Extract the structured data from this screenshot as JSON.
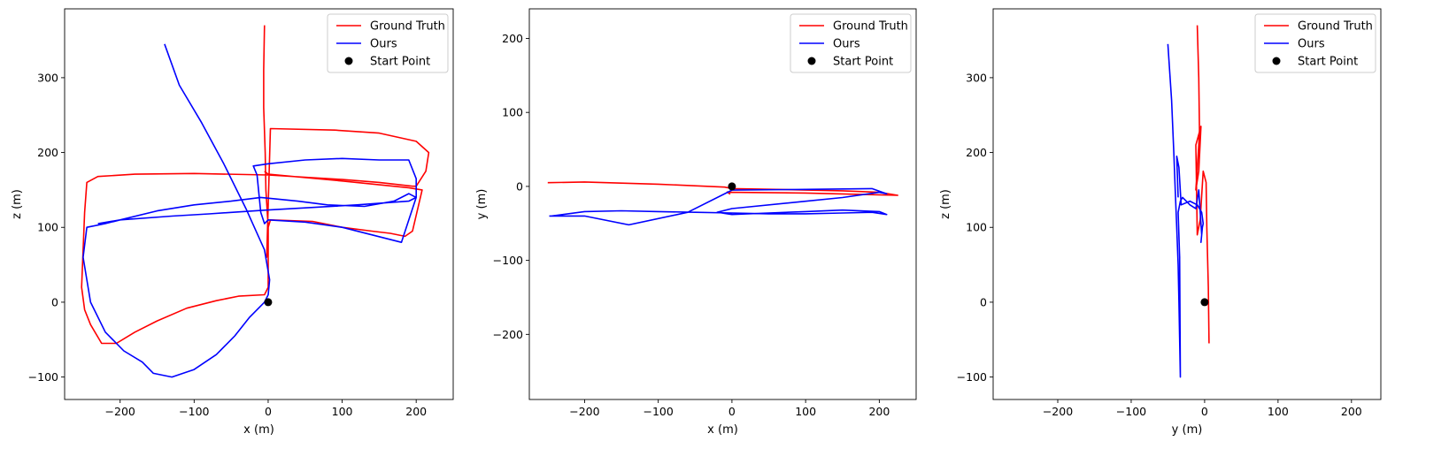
{
  "chart_data": [
    {
      "type": "line",
      "xlabel": "x (m)",
      "ylabel": "z (m)",
      "xlim": [
        -275,
        250
      ],
      "ylim": [
        -130,
        392
      ],
      "xticks": [
        -200,
        -100,
        0,
        100,
        200
      ],
      "yticks": [
        -100,
        0,
        100,
        200,
        300
      ],
      "grid": false,
      "legend_position": "top-right",
      "series": [
        {
          "name": "Ground Truth",
          "color": "#ff0000",
          "x": [
            -5,
            -6,
            -6,
            -4,
            -3,
            0,
            -2,
            3,
            90,
            150,
            200,
            217,
            213,
            200,
            195,
            150,
            100,
            0,
            -100,
            -180,
            -230,
            -245,
            -248,
            -252,
            -248,
            -240,
            -225,
            -205,
            -180,
            -150,
            -110,
            -70,
            -40,
            -5,
            0,
            0,
            0,
            3,
            60,
            100,
            140,
            165,
            185,
            195,
            208,
            190,
            100,
            0,
            -5
          ],
          "y": [
            370,
            310,
            260,
            200,
            150,
            100,
            60,
            232,
            230,
            226,
            215,
            200,
            175,
            155,
            155,
            160,
            164,
            170,
            172,
            171,
            168,
            160,
            120,
            20,
            -10,
            -30,
            -55,
            -55,
            -40,
            -25,
            -8,
            2,
            8,
            10,
            20,
            60,
            100,
            110,
            108,
            100,
            95,
            92,
            88,
            95,
            150,
            153,
            162,
            171,
            175
          ]
        },
        {
          "name": "Ours",
          "color": "#0000ff",
          "x": [
            -140,
            -120,
            -90,
            -60,
            -30,
            -5,
            2,
            0,
            -5,
            -25,
            -45,
            -70,
            -100,
            -130,
            -155,
            -170,
            -195,
            -220,
            -240,
            -250,
            -245,
            -220,
            -200,
            -150,
            -100,
            -50,
            -10,
            10,
            40,
            80,
            130,
            170,
            190,
            200,
            180,
            140,
            100,
            50,
            0,
            -5,
            -10,
            -15,
            -20,
            0,
            50,
            100,
            150,
            190,
            200,
            200,
            190,
            120,
            50,
            -5,
            -80,
            -130,
            -200,
            -230
          ],
          "y": [
            345,
            290,
            240,
            185,
            125,
            70,
            30,
            10,
            0,
            -20,
            -45,
            -70,
            -90,
            -100,
            -95,
            -80,
            -65,
            -40,
            0,
            60,
            100,
            105,
            110,
            122,
            130,
            135,
            140,
            138,
            135,
            130,
            128,
            135,
            145,
            140,
            80,
            90,
            100,
            107,
            110,
            105,
            120,
            170,
            182,
            185,
            190,
            192,
            190,
            190,
            165,
            140,
            135,
            130,
            126,
            123,
            118,
            115,
            110,
            105
          ]
        },
        {
          "name": "Start Point",
          "color": "#000000",
          "x": [
            0
          ],
          "y": [
            0
          ]
        }
      ]
    },
    {
      "type": "line",
      "xlabel": "x (m)",
      "ylabel": "y (m)",
      "xlim": [
        -275,
        250
      ],
      "ylim": [
        -288,
        240
      ],
      "xticks": [
        -200,
        -100,
        0,
        100,
        200
      ],
      "yticks": [
        -200,
        -100,
        0,
        100,
        200
      ],
      "grid": false,
      "legend_position": "top-right",
      "series": [
        {
          "name": "Ground Truth",
          "color": "#ff0000",
          "x": [
            -250,
            -200,
            -100,
            -10,
            0,
            60,
            150,
            200,
            225,
            180,
            100,
            -5,
            -3,
            -7
          ],
          "y": [
            5,
            6,
            3,
            -1,
            -3,
            -4,
            -6,
            -8,
            -12,
            -11,
            -9,
            -8,
            -10,
            -7
          ],
          "w": [
            1,
            1,
            1,
            1
          ]
        },
        {
          "name": "Ours",
          "color": "#0000ff",
          "x": [
            -245,
            -200,
            -150,
            -100,
            -50,
            0,
            50,
            100,
            150,
            190,
            210,
            200,
            150,
            100,
            50,
            0,
            -20,
            0,
            100,
            150,
            200,
            210,
            190,
            100,
            0,
            -60,
            -140,
            -200,
            -248
          ],
          "y": [
            -40,
            -34,
            -33,
            -34,
            -35,
            -36,
            -37,
            -37,
            -36,
            -35,
            -38,
            -34,
            -32,
            -34,
            -36,
            -38,
            -35,
            -30,
            -20,
            -15,
            -8,
            -10,
            -3,
            -4,
            -5,
            -35,
            -52,
            -40,
            -40
          ]
        },
        {
          "name": "Start Point",
          "color": "#000000",
          "x": [
            0
          ],
          "y": [
            0
          ]
        }
      ]
    },
    {
      "type": "line",
      "xlabel": "y (m)",
      "ylabel": "z (m)",
      "xlim": [
        -288,
        240
      ],
      "ylim": [
        -130,
        392
      ],
      "xticks": [
        -200,
        -100,
        0,
        100,
        200
      ],
      "yticks": [
        -100,
        0,
        100,
        200,
        300
      ],
      "grid": false,
      "legend_position": "top-right",
      "series": [
        {
          "name": "Ground Truth",
          "color": "#ff0000",
          "x": [
            -10,
            -8,
            -7,
            -8,
            -12,
            -8,
            -5,
            -12,
            -10,
            -6,
            -2,
            2,
            3,
            5,
            6
          ],
          "y": [
            370,
            300,
            230,
            210,
            150,
            175,
            235,
            210,
            90,
            110,
            175,
            160,
            100,
            20,
            -55
          ]
        },
        {
          "name": "Ours",
          "color": "#0000ff",
          "x": [
            -50,
            -45,
            -42,
            -40,
            -38,
            -36,
            -35,
            -33,
            -34,
            -36,
            -33,
            -30,
            -25,
            -20,
            -12,
            -8,
            -4,
            -5,
            -3,
            -2,
            -4,
            -10,
            -20,
            -32,
            -35,
            -38,
            -36
          ],
          "y": [
            345,
            270,
            200,
            150,
            100,
            50,
            0,
            -100,
            60,
            120,
            135,
            140,
            135,
            130,
            125,
            150,
            90,
            80,
            100,
            105,
            120,
            130,
            135,
            130,
            180,
            195,
            140
          ]
        },
        {
          "name": "Start Point",
          "color": "#000000",
          "x": [
            0
          ],
          "y": [
            0
          ]
        }
      ]
    }
  ]
}
